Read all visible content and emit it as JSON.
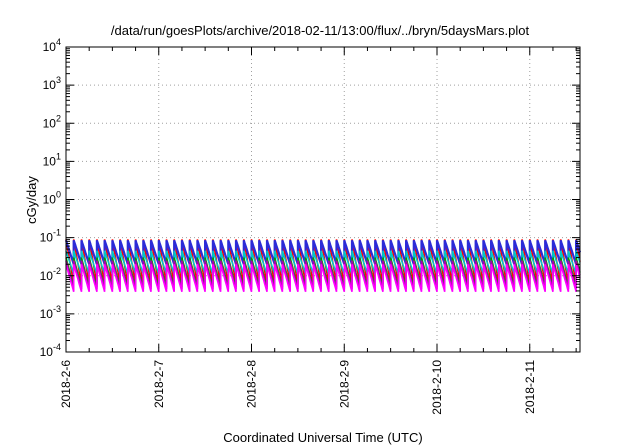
{
  "chart_data": {
    "type": "line",
    "title": "/data/run/goesPlots/archive/2018-02-11/13:00/flux/../bryn/5daysMars.plot",
    "xlabel": "Coordinated Universal Time (UTC)",
    "ylabel": "cGy/day",
    "yscale": "log",
    "ylim": [
      0.0001,
      10000
    ],
    "xlim": [
      "2018-02-06 00:00",
      "2018-02-11 13:00"
    ],
    "grid": true,
    "legend": "none",
    "x_tick_labels": [
      "2018-2-6",
      "2018-2-7",
      "2018-2-8",
      "2018-2-9",
      "2018-2-10",
      "2018-2-11"
    ],
    "y_tick_labels": [
      {
        "base": "10",
        "exp": "-4"
      },
      {
        "base": "10",
        "exp": "-3"
      },
      {
        "base": "10",
        "exp": "-2"
      },
      {
        "base": "10",
        "exp": "-1"
      },
      {
        "base": "10",
        "exp": "0"
      },
      {
        "base": "10",
        "exp": "1"
      },
      {
        "base": "10",
        "exp": "2"
      },
      {
        "base": "10",
        "exp": "3"
      },
      {
        "base": "10",
        "exp": "4"
      }
    ],
    "cycle_hours": 2,
    "series": [
      {
        "color": "#ff0000",
        "peak": 0.09,
        "trough": 0.006
      },
      {
        "color": "#2b2bd8",
        "peak": 0.085,
        "trough": 0.02
      },
      {
        "color": "#00c8c8",
        "peak": 0.045,
        "trough": 0.011
      },
      {
        "color": "#00a000",
        "peak": 0.03,
        "trough": 0.005
      },
      {
        "color": "#aa00aa",
        "peak": 0.025,
        "trough": 0.0045
      },
      {
        "color": "#ff00ff",
        "peak": 0.02,
        "trough": 0.0038
      }
    ]
  }
}
